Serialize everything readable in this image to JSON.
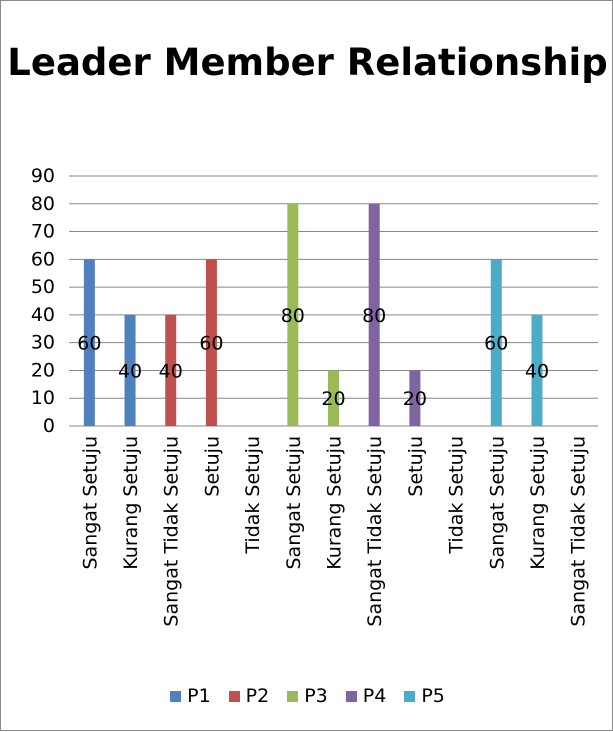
{
  "chart_data": {
    "type": "bar",
    "title": "Leader Member Relationship",
    "categories": [
      "Sangat Setuju",
      "Kurang Setuju",
      "Sangat Tidak Setuju",
      "Setuju",
      "Tidak Setuju",
      "Sangat Setuju",
      "Kurang Setuju",
      "Sangat Tidak Setuju",
      "Setuju",
      "Tidak Setuju",
      "Sangat Setuju",
      "Kurang Setuju",
      "Sangat Tidak Setuju"
    ],
    "series": [
      {
        "name": "P1",
        "color": "#4F81BD",
        "values": [
          60,
          40,
          null,
          null,
          null,
          null,
          null,
          null,
          null,
          null,
          null,
          null,
          null
        ]
      },
      {
        "name": "P2",
        "color": "#C0504D",
        "values": [
          null,
          null,
          40,
          60,
          null,
          null,
          null,
          null,
          null,
          null,
          null,
          null,
          null
        ]
      },
      {
        "name": "P3",
        "color": "#9BBB59",
        "values": [
          null,
          null,
          null,
          null,
          null,
          80,
          20,
          null,
          null,
          null,
          null,
          null,
          null
        ]
      },
      {
        "name": "P4",
        "color": "#8064A2",
        "values": [
          null,
          null,
          null,
          null,
          null,
          null,
          null,
          80,
          20,
          null,
          null,
          null,
          null
        ]
      },
      {
        "name": "P5",
        "color": "#4BACC6",
        "values": [
          null,
          null,
          null,
          null,
          null,
          null,
          null,
          null,
          null,
          null,
          60,
          40,
          null
        ]
      }
    ],
    "data_labels": true,
    "ylim": [
      0,
      90
    ],
    "yticks": [
      0,
      10,
      20,
      30,
      40,
      50,
      60,
      70,
      80,
      90
    ],
    "grid": true,
    "legend": "bottom",
    "xlabel": "",
    "ylabel": ""
  }
}
